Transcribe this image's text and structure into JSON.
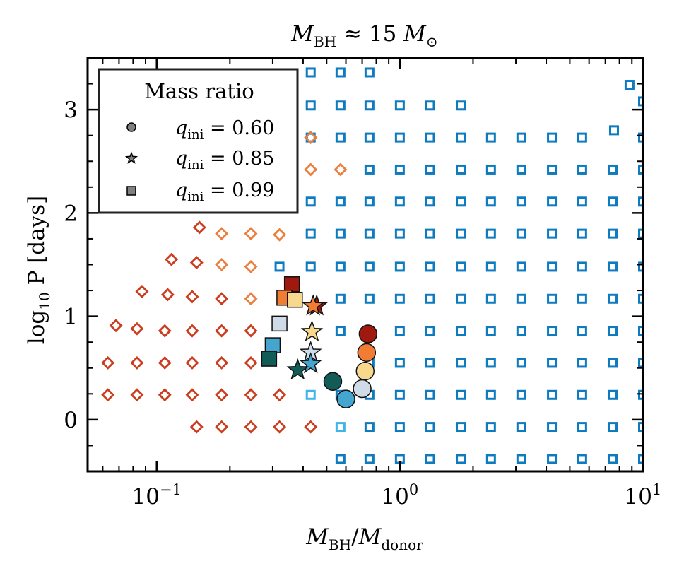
{
  "chart_data": {
    "type": "scatter",
    "title": "M_BH ≈ 15 M_⊙",
    "title_parts": {
      "a": "M",
      "a_sub": "BH",
      "b": " ≈ 15 ",
      "c": "M",
      "c_sub": "⊙"
    },
    "xlabel_parts": {
      "a": "M",
      "a_sub": "BH",
      "mid": "/",
      "b": "M",
      "b_sub": "donor"
    },
    "ylabel_parts": {
      "a": "log",
      "a_sub": "10",
      "b": " P [days]"
    },
    "x_scale": "log",
    "xlim": [
      0.052,
      10
    ],
    "ylim": [
      -0.5,
      3.5
    ],
    "x_ticks": [
      {
        "value": 0.1,
        "label": "10",
        "exp": "−1"
      },
      {
        "value": 1,
        "label": "10",
        "exp": "0"
      },
      {
        "value": 10,
        "label": "10",
        "exp": "1"
      }
    ],
    "y_ticks": [
      {
        "value": 0,
        "label": "0"
      },
      {
        "value": 1,
        "label": "1"
      },
      {
        "value": 2,
        "label": "2"
      },
      {
        "value": 3,
        "label": "3"
      }
    ],
    "legend": {
      "title": "Mass ratio",
      "position": "top-left",
      "entries": [
        {
          "marker": "circle",
          "label": "q_ini = 0.60",
          "label_base": "q",
          "label_sub": "ini",
          "label_rest": " = 0.60"
        },
        {
          "marker": "star",
          "label": "q_ini = 0.85",
          "label_base": "q",
          "label_sub": "ini",
          "label_rest": " = 0.85"
        },
        {
          "marker": "square",
          "label": "q_ini = 0.99",
          "label_base": "q",
          "label_sub": "ini",
          "label_rest": " = 0.99"
        }
      ]
    },
    "colors": {
      "grid_square_blue": "#0f7bbf",
      "grid_square_lightblue": "#3eb5e8",
      "diamond_red": "#cc3d1e",
      "diamond_orange": "#ea7f3e",
      "legend_marker": "#808080"
    },
    "grid_squares": {
      "color": "#0f7bbf",
      "rows": [
        {
          "y": -0.38,
          "x": [
            0.57,
            0.75,
            1.0,
            1.33,
            1.78,
            2.37,
            3.16,
            4.22,
            5.62,
            7.5,
            10.0
          ]
        },
        {
          "y": -0.07,
          "x": [
            0.75,
            1.0,
            1.33,
            1.78,
            2.37,
            3.16,
            4.22,
            5.62,
            7.5,
            10.0
          ]
        },
        {
          "y": 0.24,
          "x": [
            0.57,
            0.75,
            1.0,
            1.33,
            1.78,
            2.37,
            3.16,
            4.22,
            5.62,
            7.5,
            10.0
          ]
        },
        {
          "y": 0.55,
          "x": [
            0.75,
            1.0,
            1.33,
            1.78,
            2.37,
            3.16,
            4.22,
            5.62,
            7.5,
            10.0
          ]
        },
        {
          "y": 0.86,
          "x": [
            0.57,
            1.0,
            1.33,
            1.78,
            2.37,
            3.16,
            4.22,
            5.62,
            7.5,
            10.0
          ]
        },
        {
          "y": 1.17,
          "x": [
            0.57,
            0.75,
            1.0,
            1.33,
            1.78,
            2.37,
            3.16,
            4.22,
            5.62,
            7.5,
            10.0
          ]
        },
        {
          "y": 1.48,
          "x": [
            0.32,
            0.43,
            0.57,
            0.75,
            1.0,
            1.33,
            1.78,
            2.37,
            3.16,
            4.22,
            5.62,
            7.5,
            10.0
          ]
        },
        {
          "y": 1.8,
          "x": [
            0.43,
            0.57,
            0.75,
            1.0,
            1.33,
            1.78,
            2.37,
            3.16,
            4.22,
            5.62,
            7.5,
            10.0
          ]
        },
        {
          "y": 2.11,
          "x": [
            0.43,
            0.57,
            0.75,
            1.0,
            1.33,
            1.78,
            2.37,
            3.16,
            4.22,
            5.62,
            7.5,
            10.0
          ]
        },
        {
          "y": 2.42,
          "x": [
            0.75,
            1.0,
            1.33,
            1.78,
            2.37,
            3.16,
            4.22,
            5.62,
            7.5,
            10.0
          ]
        },
        {
          "y": 2.73,
          "x": [
            0.43,
            0.57,
            0.75,
            1.0,
            1.33,
            1.78,
            2.37,
            3.16,
            4.22,
            5.62,
            10.0
          ]
        },
        {
          "y": 3.04,
          "x": [
            0.43,
            0.57,
            0.75,
            1.0,
            1.33,
            1.78
          ]
        },
        {
          "y": 3.36,
          "x": [
            0.43,
            0.57,
            0.75
          ]
        }
      ],
      "extras": [
        {
          "x": 7.6,
          "y": 2.8
        },
        {
          "x": 8.8,
          "y": 3.24
        },
        {
          "x": 10.0,
          "y": 3.08
        }
      ]
    },
    "grid_squares_light": {
      "color": "#3eb5e8",
      "points": [
        {
          "x": 0.43,
          "y": 0.24
        },
        {
          "x": 0.57,
          "y": -0.07
        }
      ]
    },
    "diamonds_red": {
      "color": "#cc3d1e",
      "points": [
        {
          "x": 0.146,
          "y": -0.07
        },
        {
          "x": 0.185,
          "y": -0.07
        },
        {
          "x": 0.244,
          "y": -0.07
        },
        {
          "x": 0.32,
          "y": -0.07
        },
        {
          "x": 0.43,
          "y": -0.07
        },
        {
          "x": 0.063,
          "y": 0.24
        },
        {
          "x": 0.083,
          "y": 0.24
        },
        {
          "x": 0.108,
          "y": 0.24
        },
        {
          "x": 0.14,
          "y": 0.24
        },
        {
          "x": 0.185,
          "y": 0.24
        },
        {
          "x": 0.244,
          "y": 0.24
        },
        {
          "x": 0.32,
          "y": 0.24
        },
        {
          "x": 0.063,
          "y": 0.55
        },
        {
          "x": 0.083,
          "y": 0.55
        },
        {
          "x": 0.108,
          "y": 0.55
        },
        {
          "x": 0.14,
          "y": 0.55
        },
        {
          "x": 0.185,
          "y": 0.55
        },
        {
          "x": 0.244,
          "y": 0.55
        },
        {
          "x": 0.068,
          "y": 0.91
        },
        {
          "x": 0.083,
          "y": 0.88
        },
        {
          "x": 0.108,
          "y": 0.86
        },
        {
          "x": 0.14,
          "y": 0.86
        },
        {
          "x": 0.185,
          "y": 0.86
        },
        {
          "x": 0.244,
          "y": 0.86
        },
        {
          "x": 0.087,
          "y": 1.24
        },
        {
          "x": 0.111,
          "y": 1.21
        },
        {
          "x": 0.14,
          "y": 1.19
        },
        {
          "x": 0.185,
          "y": 1.17
        },
        {
          "x": 0.115,
          "y": 1.55
        },
        {
          "x": 0.146,
          "y": 1.52
        },
        {
          "x": 0.15,
          "y": 1.86
        }
      ]
    },
    "diamonds_orange": {
      "color": "#ea7f3e",
      "points": [
        {
          "x": 0.185,
          "y": 1.8
        },
        {
          "x": 0.244,
          "y": 1.8
        },
        {
          "x": 0.32,
          "y": 1.79
        },
        {
          "x": 0.185,
          "y": 1.5
        },
        {
          "x": 0.244,
          "y": 1.48
        },
        {
          "x": 0.244,
          "y": 1.17
        },
        {
          "x": 0.185,
          "y": 2.12
        },
        {
          "x": 0.244,
          "y": 2.11
        },
        {
          "x": 0.32,
          "y": 2.11
        },
        {
          "x": 0.43,
          "y": 2.42
        },
        {
          "x": 0.57,
          "y": 2.42
        },
        {
          "x": 0.43,
          "y": 2.73
        },
        {
          "x": 0.33,
          "y": 3.08
        }
      ]
    },
    "filled_points": [
      {
        "marker": "circle",
        "x": 0.74,
        "y": 0.83,
        "color": "#a0190f"
      },
      {
        "marker": "circle",
        "x": 0.73,
        "y": 0.65,
        "color": "#f07d33"
      },
      {
        "marker": "circle",
        "x": 0.72,
        "y": 0.47,
        "color": "#f7d88c"
      },
      {
        "marker": "circle",
        "x": 0.7,
        "y": 0.3,
        "color": "#cfdce8"
      },
      {
        "marker": "circle",
        "x": 0.6,
        "y": 0.2,
        "color": "#44a5cf"
      },
      {
        "marker": "circle",
        "x": 0.53,
        "y": 0.37,
        "color": "#125c58"
      },
      {
        "marker": "star",
        "x": 0.455,
        "y": 1.1,
        "color": "#a0190f"
      },
      {
        "marker": "star",
        "x": 0.44,
        "y": 1.1,
        "color": "#f07d33"
      },
      {
        "marker": "star",
        "x": 0.435,
        "y": 0.85,
        "color": "#f7d88c"
      },
      {
        "marker": "star",
        "x": 0.43,
        "y": 0.65,
        "color": "#cfdce8"
      },
      {
        "marker": "star",
        "x": 0.43,
        "y": 0.54,
        "color": "#44a5cf"
      },
      {
        "marker": "star",
        "x": 0.38,
        "y": 0.48,
        "color": "#125c58"
      },
      {
        "marker": "square",
        "x": 0.36,
        "y": 1.31,
        "color": "#a0190f"
      },
      {
        "marker": "square",
        "x": 0.335,
        "y": 1.18,
        "color": "#f07d33"
      },
      {
        "marker": "square",
        "x": 0.37,
        "y": 1.16,
        "color": "#f7d88c"
      },
      {
        "marker": "square",
        "x": 0.32,
        "y": 0.93,
        "color": "#cfdce8"
      },
      {
        "marker": "square",
        "x": 0.3,
        "y": 0.72,
        "color": "#44a5cf"
      },
      {
        "marker": "square",
        "x": 0.29,
        "y": 0.59,
        "color": "#125c58"
      }
    ]
  }
}
